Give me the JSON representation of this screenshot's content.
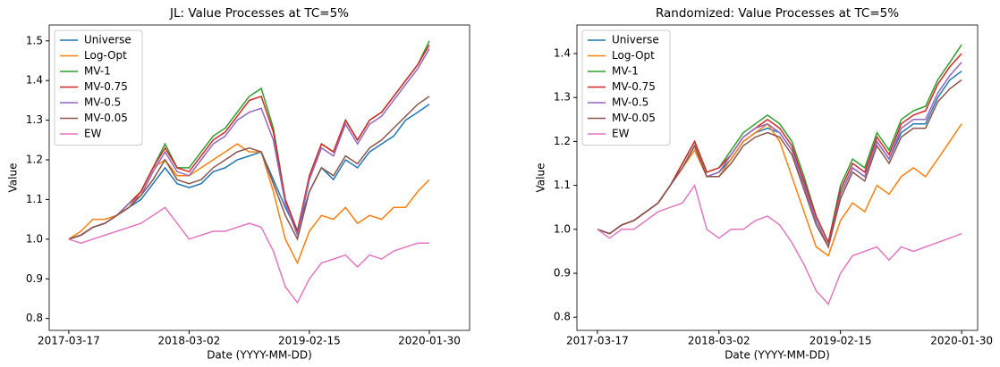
{
  "chart_data": [
    {
      "type": "line",
      "title": "JL: Value Processes at TC=5%",
      "xlabel": "Date (YYYY-MM-DD)",
      "ylabel": "Value",
      "legend": "upper left",
      "x": [
        "2017-03-17",
        "2017-04-21",
        "2017-05-26",
        "2017-06-30",
        "2017-08-04",
        "2017-09-08",
        "2017-10-13",
        "2017-11-17",
        "2017-12-22",
        "2018-01-26",
        "2018-03-02",
        "2018-04-06",
        "2018-05-11",
        "2018-06-15",
        "2018-07-20",
        "2018-08-24",
        "2018-09-28",
        "2018-11-02",
        "2018-12-07",
        "2019-01-11",
        "2019-02-15",
        "2019-03-22",
        "2019-04-26",
        "2019-05-31",
        "2019-07-05",
        "2019-08-09",
        "2019-09-13",
        "2019-10-18",
        "2019-11-22",
        "2019-12-27",
        "2020-01-30"
      ],
      "xlim": [
        "2017-01-19",
        "2020-05-26"
      ],
      "xticks": [
        "2017-03-17",
        "2018-03-02",
        "2019-02-15",
        "2020-01-30"
      ],
      "ylim": [
        0.77,
        1.54
      ],
      "yticks": [
        0.8,
        0.9,
        {
          "value": 1,
          "label": "1.0"
        },
        1.1,
        1.2,
        1.3,
        1.4,
        1.5
      ],
      "series": [
        {
          "name": "Universe",
          "color": "#1f77b4",
          "values": [
            1.0,
            1.01,
            1.03,
            1.04,
            1.06,
            1.08,
            1.1,
            1.14,
            1.18,
            1.14,
            1.13,
            1.14,
            1.17,
            1.18,
            1.2,
            1.21,
            1.22,
            1.15,
            1.08,
            1.02,
            1.12,
            1.18,
            1.15,
            1.2,
            1.18,
            1.22,
            1.24,
            1.26,
            1.3,
            1.32,
            1.34
          ]
        },
        {
          "name": "Log-Opt",
          "color": "#ff7f0e",
          "values": [
            1.0,
            1.02,
            1.05,
            1.05,
            1.06,
            1.08,
            1.12,
            1.18,
            1.2,
            1.16,
            1.16,
            1.18,
            1.2,
            1.22,
            1.24,
            1.22,
            1.22,
            1.12,
            1.0,
            0.94,
            1.02,
            1.06,
            1.05,
            1.08,
            1.04,
            1.06,
            1.05,
            1.08,
            1.08,
            1.12,
            1.15
          ]
        },
        {
          "name": "MV-1",
          "color": "#2ca02c",
          "values": [
            1.0,
            1.01,
            1.03,
            1.04,
            1.06,
            1.09,
            1.12,
            1.18,
            1.24,
            1.18,
            1.18,
            1.22,
            1.26,
            1.28,
            1.32,
            1.36,
            1.38,
            1.28,
            1.1,
            1.02,
            1.16,
            1.24,
            1.22,
            1.3,
            1.25,
            1.3,
            1.32,
            1.36,
            1.4,
            1.44,
            1.5
          ]
        },
        {
          "name": "MV-0.75",
          "color": "#d62728",
          "values": [
            1.0,
            1.01,
            1.03,
            1.04,
            1.06,
            1.09,
            1.12,
            1.18,
            1.23,
            1.18,
            1.17,
            1.21,
            1.25,
            1.27,
            1.31,
            1.35,
            1.36,
            1.27,
            1.1,
            1.02,
            1.16,
            1.24,
            1.22,
            1.3,
            1.25,
            1.3,
            1.32,
            1.36,
            1.4,
            1.44,
            1.49
          ]
        },
        {
          "name": "MV-0.5",
          "color": "#9467bd",
          "values": [
            1.0,
            1.01,
            1.03,
            1.04,
            1.06,
            1.09,
            1.11,
            1.17,
            1.22,
            1.17,
            1.16,
            1.2,
            1.24,
            1.26,
            1.3,
            1.32,
            1.33,
            1.25,
            1.09,
            1.01,
            1.15,
            1.23,
            1.21,
            1.29,
            1.24,
            1.29,
            1.31,
            1.35,
            1.39,
            1.43,
            1.48
          ]
        },
        {
          "name": "MV-0.05",
          "color": "#8c564b",
          "values": [
            1.0,
            1.01,
            1.03,
            1.04,
            1.06,
            1.08,
            1.11,
            1.15,
            1.2,
            1.15,
            1.14,
            1.15,
            1.18,
            1.2,
            1.22,
            1.23,
            1.22,
            1.14,
            1.06,
            1.0,
            1.12,
            1.18,
            1.16,
            1.21,
            1.19,
            1.23,
            1.25,
            1.28,
            1.31,
            1.34,
            1.36
          ]
        },
        {
          "name": "EW",
          "color": "#e377c2",
          "values": [
            1.0,
            0.99,
            1.0,
            1.01,
            1.02,
            1.03,
            1.04,
            1.06,
            1.08,
            1.04,
            1.0,
            1.01,
            1.02,
            1.02,
            1.03,
            1.04,
            1.03,
            0.97,
            0.88,
            0.84,
            0.9,
            0.94,
            0.95,
            0.96,
            0.93,
            0.96,
            0.95,
            0.97,
            0.98,
            0.99,
            0.99
          ]
        }
      ]
    },
    {
      "type": "line",
      "title": "Randomized: Value Processes at TC=5%",
      "xlabel": "Date (YYYY-MM-DD)",
      "ylabel": "Value",
      "legend": "upper left",
      "x": [
        "2017-03-17",
        "2017-04-21",
        "2017-05-26",
        "2017-06-30",
        "2017-08-04",
        "2017-09-08",
        "2017-10-13",
        "2017-11-17",
        "2017-12-22",
        "2018-01-26",
        "2018-03-02",
        "2018-04-06",
        "2018-05-11",
        "2018-06-15",
        "2018-07-20",
        "2018-08-24",
        "2018-09-28",
        "2018-11-02",
        "2018-12-07",
        "2019-01-11",
        "2019-02-15",
        "2019-03-22",
        "2019-04-26",
        "2019-05-31",
        "2019-07-05",
        "2019-08-09",
        "2019-09-13",
        "2019-10-18",
        "2019-11-22",
        "2019-12-27",
        "2020-01-30"
      ],
      "xlim": [
        "2017-01-17",
        "2020-03-16"
      ],
      "xticks": [
        "2017-03-17",
        "2018-03-02",
        "2019-02-15",
        "2020-01-30"
      ],
      "ylim": [
        0.77,
        1.465
      ],
      "yticks": [
        0.8,
        0.9,
        {
          "value": 1,
          "label": "1.0"
        },
        1.1,
        1.2,
        1.3,
        1.4
      ],
      "series": [
        {
          "name": "Universe",
          "color": "#1f77b4",
          "values": [
            1.0,
            0.99,
            1.01,
            1.02,
            1.04,
            1.06,
            1.1,
            1.14,
            1.19,
            1.12,
            1.13,
            1.16,
            1.2,
            1.22,
            1.23,
            1.22,
            1.18,
            1.1,
            1.02,
            0.96,
            1.08,
            1.14,
            1.12,
            1.2,
            1.16,
            1.22,
            1.24,
            1.24,
            1.3,
            1.34,
            1.36
          ]
        },
        {
          "name": "Log-Opt",
          "color": "#ff7f0e",
          "values": [
            1.0,
            0.99,
            1.01,
            1.02,
            1.04,
            1.06,
            1.1,
            1.14,
            1.18,
            1.12,
            1.12,
            1.16,
            1.2,
            1.22,
            1.24,
            1.2,
            1.12,
            1.04,
            0.96,
            0.94,
            1.02,
            1.06,
            1.04,
            1.1,
            1.08,
            1.12,
            1.14,
            1.12,
            1.16,
            1.2,
            1.24
          ]
        },
        {
          "name": "MV-1",
          "color": "#2ca02c",
          "values": [
            1.0,
            0.99,
            1.01,
            1.02,
            1.04,
            1.06,
            1.1,
            1.15,
            1.2,
            1.13,
            1.14,
            1.18,
            1.22,
            1.24,
            1.26,
            1.24,
            1.2,
            1.12,
            1.03,
            0.97,
            1.1,
            1.16,
            1.14,
            1.22,
            1.18,
            1.25,
            1.27,
            1.28,
            1.34,
            1.38,
            1.42
          ]
        },
        {
          "name": "MV-0.75",
          "color": "#d62728",
          "values": [
            1.0,
            0.99,
            1.01,
            1.02,
            1.04,
            1.06,
            1.1,
            1.15,
            1.2,
            1.13,
            1.14,
            1.17,
            1.21,
            1.23,
            1.25,
            1.23,
            1.19,
            1.11,
            1.03,
            0.97,
            1.09,
            1.15,
            1.13,
            1.21,
            1.17,
            1.24,
            1.26,
            1.27,
            1.33,
            1.37,
            1.4
          ]
        },
        {
          "name": "MV-0.5",
          "color": "#9467bd",
          "values": [
            1.0,
            0.99,
            1.01,
            1.02,
            1.04,
            1.06,
            1.1,
            1.14,
            1.19,
            1.12,
            1.13,
            1.17,
            1.21,
            1.23,
            1.24,
            1.22,
            1.18,
            1.1,
            1.02,
            0.96,
            1.08,
            1.14,
            1.12,
            1.2,
            1.16,
            1.23,
            1.25,
            1.25,
            1.31,
            1.35,
            1.38
          ]
        },
        {
          "name": "MV-0.05",
          "color": "#8c564b",
          "values": [
            1.0,
            0.99,
            1.01,
            1.02,
            1.04,
            1.06,
            1.1,
            1.14,
            1.19,
            1.12,
            1.12,
            1.15,
            1.19,
            1.21,
            1.22,
            1.21,
            1.17,
            1.09,
            1.01,
            0.96,
            1.07,
            1.13,
            1.11,
            1.19,
            1.15,
            1.21,
            1.23,
            1.23,
            1.29,
            1.32,
            1.34
          ]
        },
        {
          "name": "EW",
          "color": "#e377c2",
          "values": [
            1.0,
            0.98,
            1.0,
            1.0,
            1.02,
            1.04,
            1.05,
            1.06,
            1.1,
            1.0,
            0.98,
            1.0,
            1.0,
            1.02,
            1.03,
            1.01,
            0.97,
            0.92,
            0.86,
            0.83,
            0.9,
            0.94,
            0.95,
            0.96,
            0.93,
            0.96,
            0.95,
            0.96,
            0.97,
            0.98,
            0.99
          ]
        }
      ]
    }
  ]
}
